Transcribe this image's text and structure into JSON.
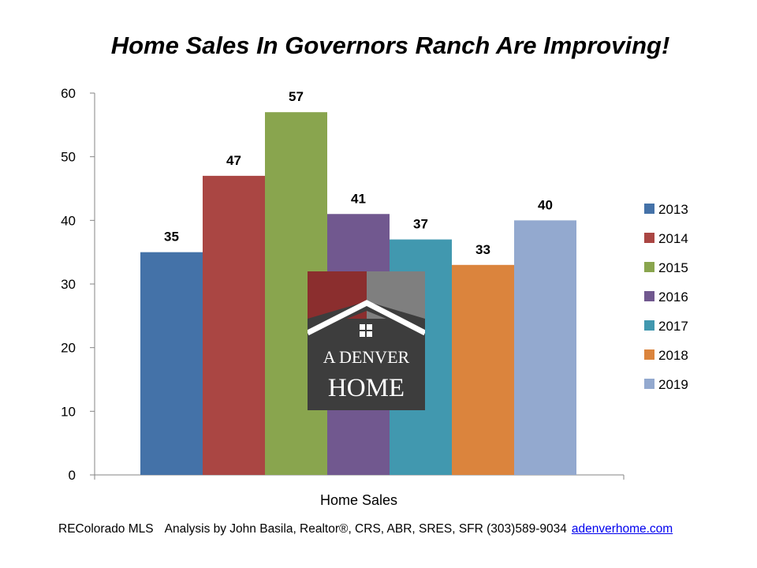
{
  "chart_data": {
    "type": "bar",
    "title": "Home Sales In Governors Ranch Are Improving!",
    "xlabel": "Home Sales",
    "ylabel": "",
    "ylim": [
      0,
      60
    ],
    "yticks": [
      0,
      10,
      20,
      30,
      40,
      50,
      60
    ],
    "categories": [
      "Home Sales"
    ],
    "series": [
      {
        "name": "2013",
        "values": [
          35
        ],
        "color": "#4472a8"
      },
      {
        "name": "2014",
        "values": [
          47
        ],
        "color": "#aa4643"
      },
      {
        "name": "2015",
        "values": [
          57
        ],
        "color": "#89a54e"
      },
      {
        "name": "2016",
        "values": [
          41
        ],
        "color": "#71588f"
      },
      {
        "name": "2017",
        "values": [
          37
        ],
        "color": "#4198af"
      },
      {
        "name": "2018",
        "values": [
          33
        ],
        "color": "#db843d"
      },
      {
        "name": "2019",
        "values": [
          40
        ],
        "color": "#93a9cf"
      }
    ],
    "legend_position": "right",
    "grid": false
  },
  "logo": {
    "line1": "A DENVER",
    "line2": "HOME"
  },
  "footer": {
    "source": "REColorado MLS",
    "credit": "Analysis by John Basila, Realtor®, CRS, ABR, SRES, SFR (303)589-9034",
    "link": "adenverhome.com"
  }
}
